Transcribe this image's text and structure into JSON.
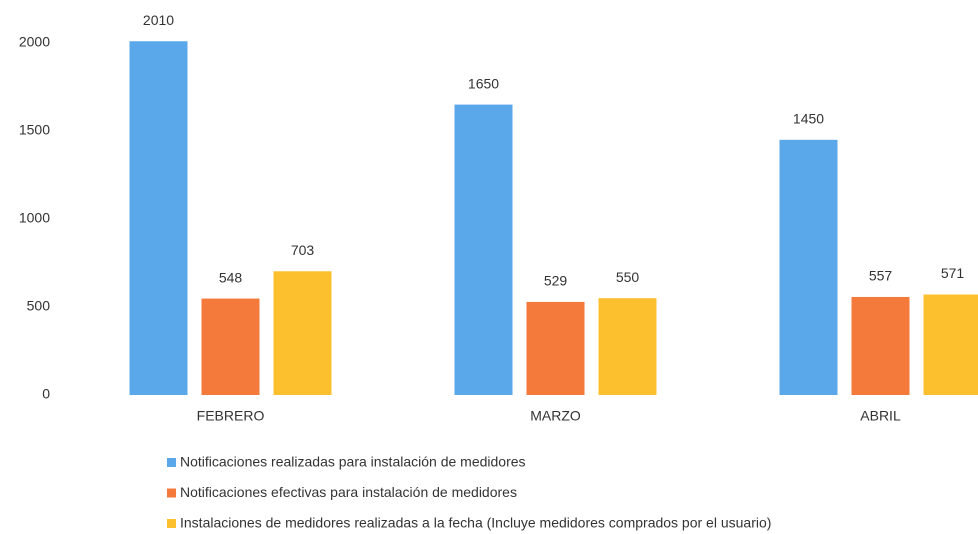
{
  "chart_data": {
    "type": "bar",
    "categories": [
      "FEBRERO",
      "MARZO",
      "ABRIL"
    ],
    "series": [
      {
        "name": "Notificaciones realizadas para instalación de medidores",
        "color": "#5aa7ea",
        "values": [
          2010,
          1650,
          1450
        ]
      },
      {
        "name": "Notificaciones efectivas para instalación de medidores",
        "color": "#f47a3c",
        "values": [
          548,
          529,
          557
        ]
      },
      {
        "name": "Instalaciones de medidores realizadas a la fecha (Incluye medidores comprados por el usuario)",
        "color": "#fcc02e",
        "values": [
          703,
          550,
          571
        ]
      }
    ],
    "ylim": [
      0,
      2000
    ],
    "yticks": [
      0,
      500,
      1000,
      1500,
      2000
    ],
    "legend": "bottom"
  }
}
